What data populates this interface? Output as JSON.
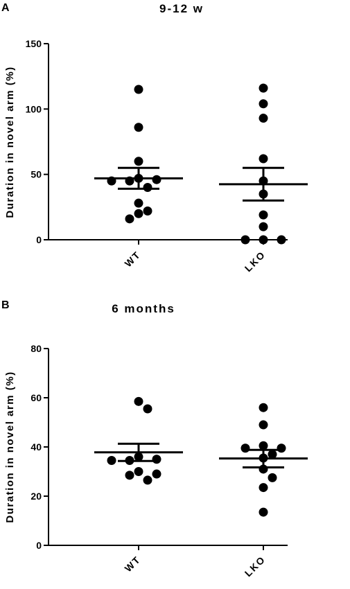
{
  "chart_data": [
    {
      "type": "scatter",
      "panel": "A",
      "title": "9-12 w",
      "ylabel": "Duration in novel arm (%)",
      "xlabel": "",
      "ylim": [
        0,
        150
      ],
      "yticks": [
        0,
        50,
        100,
        150
      ],
      "categories": [
        "WT",
        "LKO"
      ],
      "series": [
        {
          "category": "WT",
          "values": [
            115,
            86,
            60,
            47,
            46,
            45,
            45,
            40,
            28,
            22,
            20,
            16
          ],
          "mean": 47,
          "sem_upper": 55,
          "sem_lower": 39
        },
        {
          "category": "LKO",
          "values": [
            116,
            104,
            93,
            62,
            45,
            35,
            19,
            10,
            0,
            0,
            0
          ],
          "mean": 42.5,
          "sem_upper": 55,
          "sem_lower": 30
        }
      ]
    },
    {
      "type": "scatter",
      "panel": "B",
      "title": "6 months",
      "ylabel": "Duration in novel arm (%)",
      "xlabel": "",
      "ylim": [
        0,
        80
      ],
      "yticks": [
        0,
        20,
        40,
        60,
        80
      ],
      "categories": [
        "WT",
        "LKO"
      ],
      "series": [
        {
          "category": "WT",
          "values": [
            58.5,
            55.5,
            36,
            35,
            34.5,
            34.5,
            30,
            29,
            28.5,
            26.5
          ],
          "mean": 37.8,
          "sem_upper": 41.3,
          "sem_lower": 34.3
        },
        {
          "category": "LKO",
          "values": [
            56,
            49,
            40.5,
            39.5,
            39.5,
            37,
            35.5,
            31,
            27.5,
            23.5,
            13.5
          ],
          "mean": 35.3,
          "sem_upper": 38.8,
          "sem_lower": 31.7
        }
      ]
    }
  ]
}
